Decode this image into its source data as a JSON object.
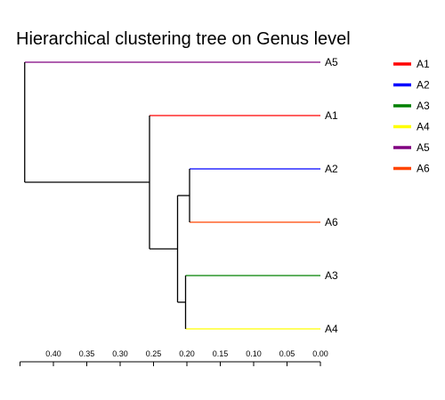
{
  "chart_data": {
    "type": "dendrogram",
    "title": "Hierarchical clustering tree on Genus level",
    "axis": {
      "direction": "reversed",
      "min": 0.0,
      "max": 0.45,
      "ticks": [
        {
          "value": 0.4,
          "label": "0.40"
        },
        {
          "value": 0.35,
          "label": "0.35"
        },
        {
          "value": 0.3,
          "label": "0.30"
        },
        {
          "value": 0.25,
          "label": "0.25"
        },
        {
          "value": 0.2,
          "label": "0.20"
        },
        {
          "value": 0.15,
          "label": "0.15"
        },
        {
          "value": 0.1,
          "label": "0.10"
        },
        {
          "value": 0.05,
          "label": "0.05"
        },
        {
          "value": 0.0,
          "label": "0.00"
        }
      ]
    },
    "leaves": [
      {
        "id": "A5",
        "label": "A5",
        "color": "#800080"
      },
      {
        "id": "A1",
        "label": "A1",
        "color": "#ff0000"
      },
      {
        "id": "A2",
        "label": "A2",
        "color": "#0000ff"
      },
      {
        "id": "A6",
        "label": "A6",
        "color": "#ff4500"
      },
      {
        "id": "A3",
        "label": "A3",
        "color": "#008000"
      },
      {
        "id": "A4",
        "label": "A4",
        "color": "#ffff00"
      }
    ],
    "merges": [
      {
        "children": [
          "A2",
          "A6"
        ],
        "height": 0.196
      },
      {
        "children": [
          "A3",
          "A4"
        ],
        "height": 0.202
      },
      {
        "children": [
          "A2+A6",
          "A3+A4"
        ],
        "height": 0.214
      },
      {
        "children": [
          "A1",
          "A2+A6+A3+A4"
        ],
        "height": 0.256
      },
      {
        "children": [
          "A5",
          "A1+A2+A6+A3+A4"
        ],
        "height": 0.443
      }
    ],
    "branch_color": "#000000",
    "legend": {
      "position": "right",
      "items": [
        {
          "label": "A1",
          "color": "#ff0000"
        },
        {
          "label": "A2",
          "color": "#0000ff"
        },
        {
          "label": "A3",
          "color": "#008000"
        },
        {
          "label": "A4",
          "color": "#ffff00"
        },
        {
          "label": "A5",
          "color": "#800080"
        },
        {
          "label": "A6",
          "color": "#ff4500"
        }
      ]
    }
  }
}
